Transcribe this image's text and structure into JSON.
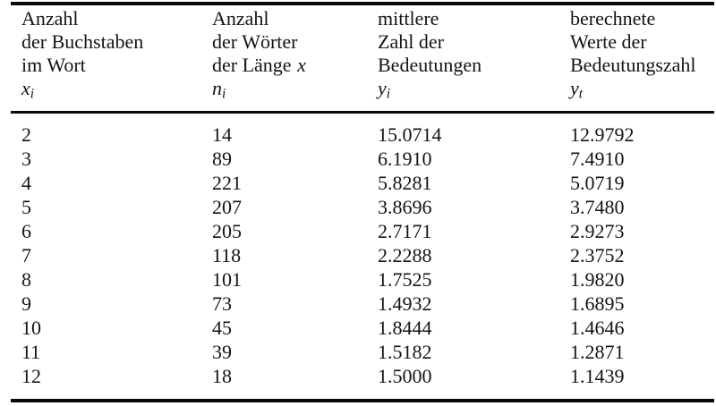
{
  "colors": {
    "background": "#ffffff",
    "text": "#141414",
    "rule": "#0a0a0a"
  },
  "table": {
    "columns": [
      {
        "lines": [
          "Anzahl",
          "der Buchstaben",
          "im Wort"
        ],
        "symbol": {
          "base": "x",
          "sub": "i"
        }
      },
      {
        "lines": [
          "Anzahl",
          "der Wörter",
          "der Länge"
        ],
        "line3_math": "x",
        "symbol": {
          "base": "n",
          "sub": "i"
        }
      },
      {
        "lines": [
          "mittlere",
          "Zahl der",
          "Bedeutungen"
        ],
        "symbol": {
          "base": "y",
          "sub": "i"
        }
      },
      {
        "lines": [
          "berechnete",
          "Werte der",
          "Bedeutungszahl"
        ],
        "symbol": {
          "base": "y",
          "sub": "t"
        }
      }
    ],
    "rows": [
      [
        "2",
        "14",
        "15.0714",
        "12.9792"
      ],
      [
        "3",
        "89",
        "6.1910",
        "7.4910"
      ],
      [
        "4",
        "221",
        "5.8281",
        "5.0719"
      ],
      [
        "5",
        "207",
        "3.8696",
        "3.7480"
      ],
      [
        "6",
        "205",
        "2.7171",
        "2.9273"
      ],
      [
        "7",
        "118",
        "2.2288",
        "2.3752"
      ],
      [
        "8",
        "101",
        "1.7525",
        "1.9820"
      ],
      [
        "9",
        "73",
        "1.4932",
        "1.6895"
      ],
      [
        "10",
        "45",
        "1.8444",
        "1.4646"
      ],
      [
        "11",
        "39",
        "1.5182",
        "1.2871"
      ],
      [
        "12",
        "18",
        "1.5000",
        "1.1439"
      ]
    ]
  }
}
